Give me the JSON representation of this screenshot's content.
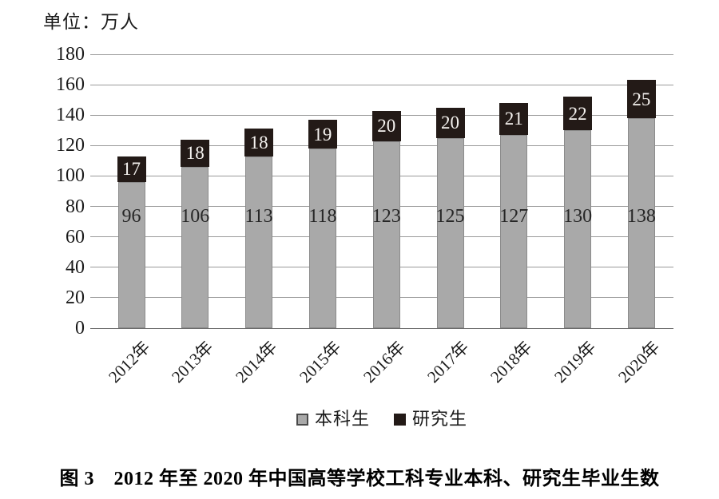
{
  "unit_label": "单位：万人",
  "caption": "图 3　2012 年至 2020 年中国高等学校工科专业本科、研究生毕业生数",
  "chart_data": {
    "type": "bar",
    "stacked": true,
    "title": "",
    "xlabel": "",
    "ylabel": "单位：万人",
    "categories": [
      "2012年",
      "2013年",
      "2014年",
      "2015年",
      "2016年",
      "2017年",
      "2018年",
      "2019年",
      "2020年"
    ],
    "series": [
      {
        "name": "本科生",
        "color": "#a9a9a9",
        "label_color": "#262626",
        "values": [
          96,
          106,
          113,
          118,
          123,
          125,
          127,
          130,
          138
        ]
      },
      {
        "name": "研究生",
        "color": "#231a17",
        "label_color": "#f6f3f0",
        "values": [
          17,
          18,
          18,
          19,
          20,
          20,
          21,
          22,
          25
        ]
      }
    ],
    "totals": [
      113,
      124,
      131,
      137,
      143,
      145,
      148,
      152,
      163
    ],
    "ylim": [
      0,
      180
    ],
    "yticks": [
      0,
      20,
      40,
      60,
      80,
      100,
      120,
      140,
      160,
      180
    ],
    "grid": true,
    "legend_position": "bottom"
  }
}
